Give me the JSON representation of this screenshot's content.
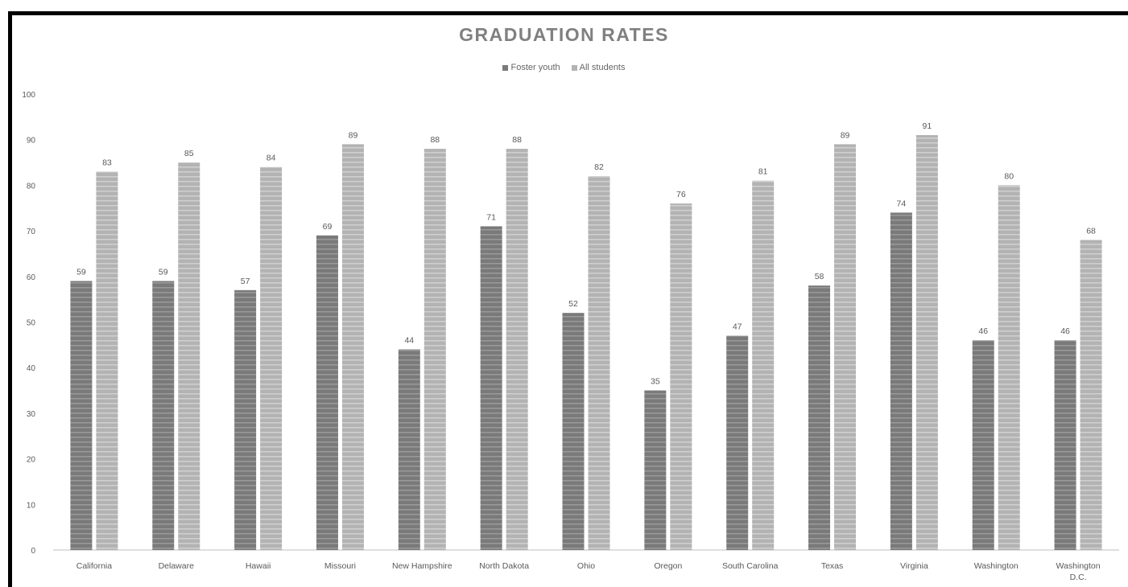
{
  "chart_data": {
    "type": "bar",
    "title": "GRADUATION RATES",
    "categories": [
      "California",
      "Delaware",
      "Hawaii",
      "Missouri",
      "New Hampshire",
      "North Dakota",
      "Ohio",
      "Oregon",
      "South Carolina",
      "Texas",
      "Virginia",
      "Washington",
      "Washington D.C."
    ],
    "series": [
      {
        "name": "Foster youth",
        "color": "#7a7a7a",
        "values": [
          59,
          59,
          57,
          69,
          44,
          71,
          52,
          35,
          47,
          58,
          74,
          46,
          46
        ],
        "labels": [
          "59",
          "59",
          "57",
          "69",
          "44",
          "71",
          "52",
          "35",
          "47",
          "58",
          "74",
          "46",
          "46"
        ]
      },
      {
        "name": "All students",
        "color": "#b3b3b3",
        "values": [
          83,
          85,
          84,
          89,
          88,
          88,
          82,
          76,
          81,
          89,
          91,
          80,
          68
        ],
        "labels": [
          "83",
          "85",
          "84",
          "89",
          "88",
          "88",
          "82",
          "76",
          "81",
          "89",
          "91",
          "80",
          "68"
        ]
      }
    ],
    "ylim": [
      0,
      100
    ],
    "yticks": [
      "0",
      "10",
      "20",
      "30",
      "40",
      "50",
      "60",
      "70",
      "80",
      "90",
      "100"
    ],
    "xlabel": "",
    "ylabel": "",
    "grid": false,
    "legend_position": "top"
  }
}
